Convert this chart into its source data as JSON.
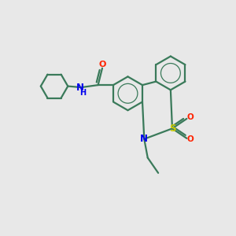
{
  "background_color": "#e8e8e8",
  "bond_color": "#3a7a5a",
  "atom_colors": {
    "N": "#0000ee",
    "S": "#cccc00",
    "O": "#ff2200",
    "C": "#3a7a5a"
  },
  "figsize": [
    3.0,
    3.0
  ],
  "dpi": 100,
  "xlim": [
    0,
    10
  ],
  "ylim": [
    0,
    10
  ],
  "lw": 1.6,
  "ring_r": 0.72,
  "cyc_r": 0.58,
  "font_size_atom": 7.5,
  "font_size_NH": 7.0
}
